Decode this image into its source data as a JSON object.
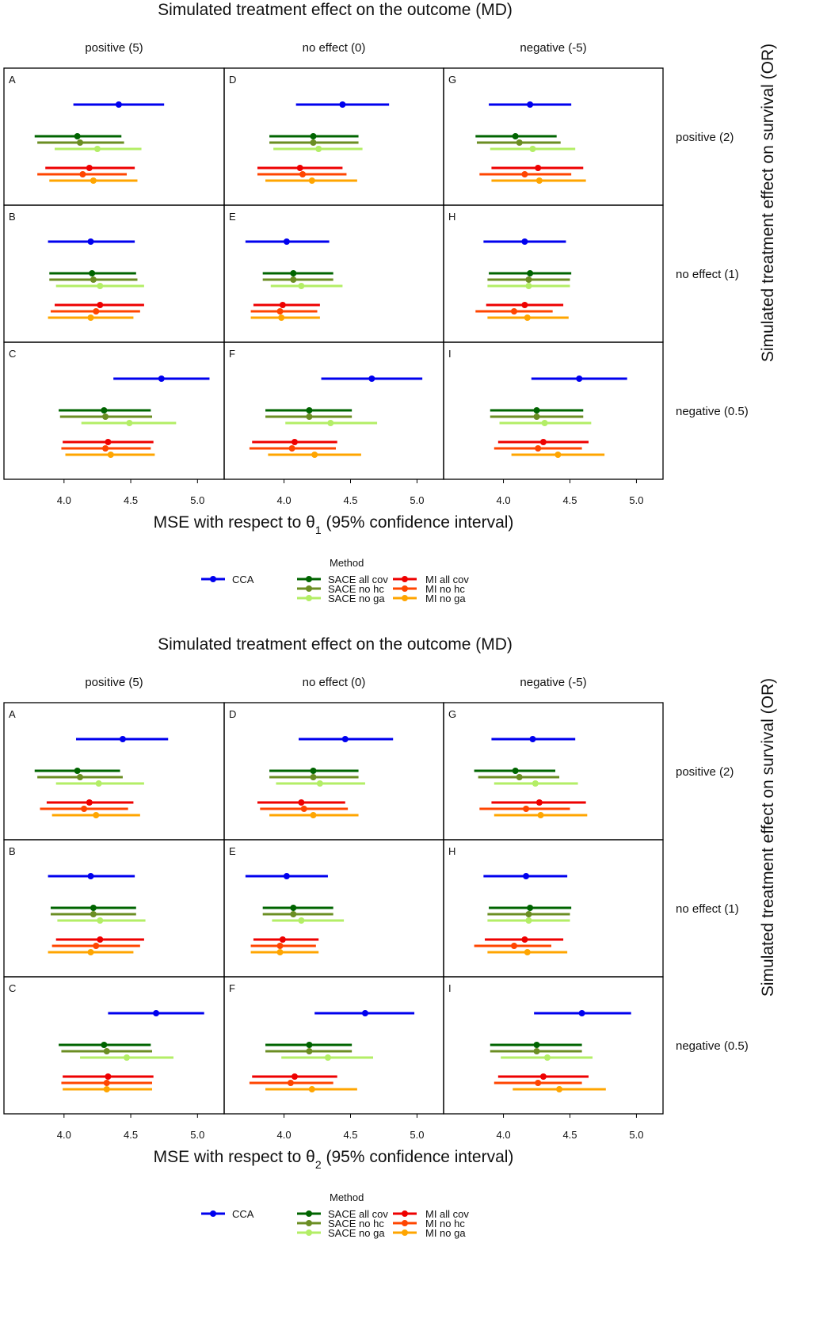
{
  "colors": {
    "CCA": "#0000ee",
    "SACE all cov": "#006400",
    "SACE  no hc": "#6b8e23",
    "SACE  no ga": "#b3ee66",
    "MI all cov": "#ee0000",
    "MI  no hc": "#ff4500",
    "MI  no ga": "#ffa500"
  },
  "legend": {
    "title": "Method",
    "cca": "CCA",
    "sace": [
      "SACE all cov",
      "SACE  no hc",
      "SACE  no ga"
    ],
    "mi": [
      "MI all cov",
      "MI  no hc",
      "MI  no ga"
    ]
  },
  "chart_data": [
    {
      "type": "forest",
      "title": "Simulated treatment effect on the outcome (MD)",
      "side_title": "Simulated treatment effect on survival (OR)",
      "xlabel_prefix": "MSE with respect to θ",
      "xlabel_sub": "1",
      "xlabel_suffix": " (95% confidence interval)",
      "columns": [
        "positive (5)",
        "no effect (0)",
        "negative (-5)"
      ],
      "rows": [
        "positive (2)",
        "no effect (1)",
        "negative (0.5)"
      ],
      "xticks": [
        4.0,
        4.5,
        5.0
      ],
      "xtick_labels": [
        "4.0",
        "4.5",
        "5.0"
      ],
      "methods": [
        "CCA",
        "SACE all cov",
        "SACE  no hc",
        "SACE  no ga",
        "MI all cov",
        "MI  no hc",
        "MI  no ga"
      ],
      "panels": [
        {
          "label": "A",
          "col": 0,
          "row": 0,
          "intervals": [
            [
              4.07,
              4.41,
              4.75
            ],
            [
              3.78,
              4.1,
              4.43
            ],
            [
              3.8,
              4.12,
              4.45
            ],
            [
              3.93,
              4.25,
              4.58
            ],
            [
              3.86,
              4.19,
              4.53
            ],
            [
              3.8,
              4.14,
              4.47
            ],
            [
              3.89,
              4.22,
              4.55
            ]
          ]
        },
        {
          "label": "D",
          "col": 1,
          "row": 0,
          "intervals": [
            [
              4.09,
              4.44,
              4.79
            ],
            [
              3.89,
              4.22,
              4.56
            ],
            [
              3.89,
              4.22,
              4.56
            ],
            [
              3.92,
              4.26,
              4.59
            ],
            [
              3.8,
              4.12,
              4.44
            ],
            [
              3.8,
              4.14,
              4.47
            ],
            [
              3.86,
              4.21,
              4.55
            ]
          ]
        },
        {
          "label": "G",
          "col": 2,
          "row": 0,
          "intervals": [
            [
              3.89,
              4.2,
              4.51
            ],
            [
              3.79,
              4.09,
              4.4
            ],
            [
              3.8,
              4.12,
              4.43
            ],
            [
              3.9,
              4.22,
              4.54
            ],
            [
              3.91,
              4.26,
              4.6
            ],
            [
              3.82,
              4.16,
              4.51
            ],
            [
              3.91,
              4.27,
              4.62
            ]
          ]
        },
        {
          "label": "B",
          "col": 0,
          "row": 1,
          "intervals": [
            [
              3.88,
              4.2,
              4.53
            ],
            [
              3.89,
              4.21,
              4.54
            ],
            [
              3.89,
              4.22,
              4.55
            ],
            [
              3.94,
              4.27,
              4.6
            ],
            [
              3.93,
              4.27,
              4.6
            ],
            [
              3.9,
              4.24,
              4.57
            ],
            [
              3.88,
              4.2,
              4.52
            ]
          ]
        },
        {
          "label": "E",
          "col": 1,
          "row": 1,
          "intervals": [
            [
              3.71,
              4.02,
              4.34
            ],
            [
              3.84,
              4.07,
              4.37
            ],
            [
              3.84,
              4.07,
              4.37
            ],
            [
              3.9,
              4.13,
              4.44
            ],
            [
              3.77,
              3.99,
              4.27
            ],
            [
              3.75,
              3.97,
              4.25
            ],
            [
              3.75,
              3.98,
              4.27
            ]
          ]
        },
        {
          "label": "H",
          "col": 2,
          "row": 1,
          "intervals": [
            [
              3.85,
              4.16,
              4.47
            ],
            [
              3.89,
              4.2,
              4.51
            ],
            [
              3.88,
              4.19,
              4.5
            ],
            [
              3.88,
              4.19,
              4.5
            ],
            [
              3.87,
              4.16,
              4.45
            ],
            [
              3.79,
              4.08,
              4.37
            ],
            [
              3.88,
              4.18,
              4.49
            ]
          ]
        },
        {
          "label": "C",
          "col": 0,
          "row": 2,
          "intervals": [
            [
              4.37,
              4.73,
              5.09
            ],
            [
              3.96,
              4.3,
              4.65
            ],
            [
              3.97,
              4.31,
              4.66
            ],
            [
              4.13,
              4.49,
              4.84
            ],
            [
              3.99,
              4.33,
              4.67
            ],
            [
              3.98,
              4.31,
              4.65
            ],
            [
              4.01,
              4.35,
              4.68
            ]
          ]
        },
        {
          "label": "F",
          "col": 1,
          "row": 2,
          "intervals": [
            [
              4.28,
              4.66,
              5.04
            ],
            [
              3.86,
              4.19,
              4.51
            ],
            [
              3.86,
              4.19,
              4.51
            ],
            [
              4.01,
              4.35,
              4.7
            ],
            [
              3.76,
              4.08,
              4.4
            ],
            [
              3.74,
              4.06,
              4.39
            ],
            [
              3.88,
              4.23,
              4.58
            ]
          ]
        },
        {
          "label": "I",
          "col": 2,
          "row": 2,
          "intervals": [
            [
              4.21,
              4.57,
              4.93
            ],
            [
              3.9,
              4.25,
              4.6
            ],
            [
              3.9,
              4.25,
              4.6
            ],
            [
              3.97,
              4.31,
              4.66
            ],
            [
              3.96,
              4.3,
              4.64
            ],
            [
              3.93,
              4.26,
              4.59
            ],
            [
              4.06,
              4.41,
              4.76
            ]
          ]
        }
      ]
    },
    {
      "type": "forest",
      "title": "Simulated treatment effect on the outcome (MD)",
      "side_title": "Simulated treatment effect on survival (OR)",
      "xlabel_prefix": "MSE with respect to θ",
      "xlabel_sub": "2",
      "xlabel_suffix": " (95% confidence interval)",
      "columns": [
        "positive (5)",
        "no effect (0)",
        "negative (-5)"
      ],
      "rows": [
        "positive (2)",
        "no effect (1)",
        "negative (0.5)"
      ],
      "xticks": [
        4.0,
        4.5,
        5.0
      ],
      "xtick_labels": [
        "4.0",
        "4.5",
        "5.0"
      ],
      "methods": [
        "CCA",
        "SACE all cov",
        "SACE  no hc",
        "SACE  no ga",
        "MI all cov",
        "MI  no hc",
        "MI  no ga"
      ],
      "panels": [
        {
          "label": "A",
          "col": 0,
          "row": 0,
          "intervals": [
            [
              4.09,
              4.44,
              4.78
            ],
            [
              3.78,
              4.1,
              4.42
            ],
            [
              3.8,
              4.12,
              4.44
            ],
            [
              3.94,
              4.26,
              4.6
            ],
            [
              3.87,
              4.19,
              4.52
            ],
            [
              3.82,
              4.15,
              4.48
            ],
            [
              3.91,
              4.24,
              4.57
            ]
          ]
        },
        {
          "label": "D",
          "col": 1,
          "row": 0,
          "intervals": [
            [
              4.11,
              4.46,
              4.82
            ],
            [
              3.89,
              4.22,
              4.56
            ],
            [
              3.89,
              4.22,
              4.56
            ],
            [
              3.94,
              4.27,
              4.61
            ],
            [
              3.8,
              4.13,
              4.46
            ],
            [
              3.82,
              4.15,
              4.48
            ],
            [
              3.89,
              4.22,
              4.56
            ]
          ]
        },
        {
          "label": "G",
          "col": 2,
          "row": 0,
          "intervals": [
            [
              3.91,
              4.22,
              4.54
            ],
            [
              3.78,
              4.09,
              4.39
            ],
            [
              3.81,
              4.12,
              4.42
            ],
            [
              3.93,
              4.24,
              4.56
            ],
            [
              3.91,
              4.27,
              4.62
            ],
            [
              3.82,
              4.17,
              4.5
            ],
            [
              3.93,
              4.28,
              4.63
            ]
          ]
        },
        {
          "label": "B",
          "col": 0,
          "row": 1,
          "intervals": [
            [
              3.88,
              4.2,
              4.53
            ],
            [
              3.9,
              4.22,
              4.54
            ],
            [
              3.9,
              4.22,
              4.54
            ],
            [
              3.95,
              4.27,
              4.61
            ],
            [
              3.94,
              4.27,
              4.6
            ],
            [
              3.91,
              4.24,
              4.57
            ],
            [
              3.88,
              4.2,
              4.52
            ]
          ]
        },
        {
          "label": "E",
          "col": 1,
          "row": 1,
          "intervals": [
            [
              3.71,
              4.02,
              4.33
            ],
            [
              3.84,
              4.07,
              4.37
            ],
            [
              3.84,
              4.07,
              4.37
            ],
            [
              3.91,
              4.13,
              4.45
            ],
            [
              3.77,
              3.99,
              4.26
            ],
            [
              3.75,
              3.97,
              4.24
            ],
            [
              3.75,
              3.97,
              4.26
            ]
          ]
        },
        {
          "label": "H",
          "col": 2,
          "row": 1,
          "intervals": [
            [
              3.85,
              4.17,
              4.48
            ],
            [
              3.89,
              4.2,
              4.51
            ],
            [
              3.88,
              4.19,
              4.5
            ],
            [
              3.88,
              4.19,
              4.5
            ],
            [
              3.86,
              4.16,
              4.45
            ],
            [
              3.78,
              4.08,
              4.36
            ],
            [
              3.88,
              4.18,
              4.48
            ]
          ]
        },
        {
          "label": "C",
          "col": 0,
          "row": 2,
          "intervals": [
            [
              4.33,
              4.69,
              5.05
            ],
            [
              3.96,
              4.3,
              4.65
            ],
            [
              3.98,
              4.32,
              4.66
            ],
            [
              4.12,
              4.47,
              4.82
            ],
            [
              3.99,
              4.33,
              4.67
            ],
            [
              3.98,
              4.32,
              4.66
            ],
            [
              3.99,
              4.32,
              4.66
            ]
          ]
        },
        {
          "label": "F",
          "col": 1,
          "row": 2,
          "intervals": [
            [
              4.23,
              4.61,
              4.98
            ],
            [
              3.86,
              4.19,
              4.51
            ],
            [
              3.86,
              4.19,
              4.51
            ],
            [
              3.98,
              4.33,
              4.67
            ],
            [
              3.76,
              4.08,
              4.4
            ],
            [
              3.74,
              4.05,
              4.37
            ],
            [
              3.86,
              4.21,
              4.55
            ]
          ]
        },
        {
          "label": "I",
          "col": 2,
          "row": 2,
          "intervals": [
            [
              4.23,
              4.59,
              4.96
            ],
            [
              3.9,
              4.25,
              4.59
            ],
            [
              3.9,
              4.25,
              4.59
            ],
            [
              3.98,
              4.33,
              4.67
            ],
            [
              3.96,
              4.3,
              4.64
            ],
            [
              3.93,
              4.26,
              4.59
            ],
            [
              4.07,
              4.42,
              4.77
            ]
          ]
        }
      ]
    }
  ]
}
